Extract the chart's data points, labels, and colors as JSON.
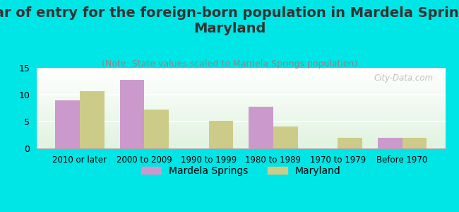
{
  "title": "Year of entry for the foreign-born population in Mardela Springs,\nMaryland",
  "subtitle": "(Note: State values scaled to Mardela Springs population)",
  "categories": [
    "2010 or later",
    "2000 to 2009",
    "1990 to 1999",
    "1980 to 1989",
    "1970 to 1979",
    "Before 1970"
  ],
  "mardela_values": [
    9.0,
    12.7,
    0,
    7.8,
    0,
    2.0
  ],
  "maryland_values": [
    10.6,
    7.3,
    5.1,
    4.1,
    2.0,
    2.0
  ],
  "mardela_color": "#cc99cc",
  "maryland_color": "#cccc88",
  "background_color": "#00e5e5",
  "ylim": [
    0,
    15
  ],
  "yticks": [
    0,
    5,
    10,
    15
  ],
  "bar_width": 0.38,
  "title_fontsize": 14,
  "subtitle_fontsize": 9,
  "legend_fontsize": 10,
  "watermark": "City-Data.com"
}
